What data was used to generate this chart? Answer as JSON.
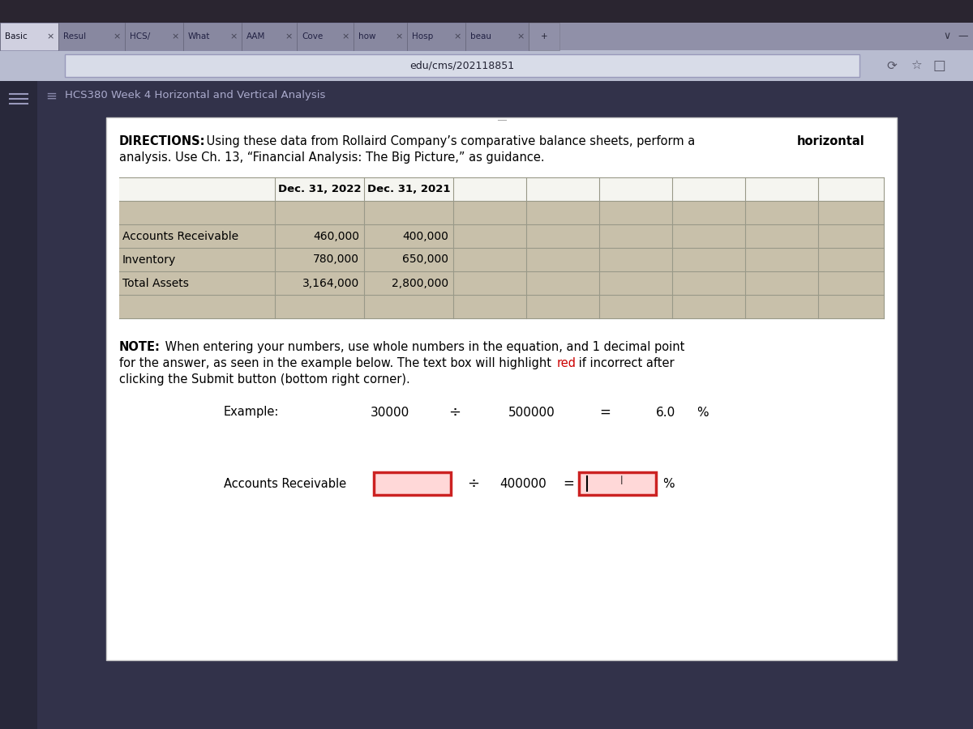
{
  "bg_outer": "#1a1a2a",
  "bg_top_bezel": "#2a2530",
  "tab_bar_bg": "#9090a8",
  "tab_active_bg": "#d0d0e0",
  "tab_inactive_bg": "#8888a0",
  "url_bar_bg": "#b8bcd0",
  "url_text_bg": "#d8dce8",
  "sidebar_bg": "#28283a",
  "content_bg": "#32324a",
  "white_box_bg": "#ffffff",
  "white_box_border": "#cccccc",
  "table_header_bg": "#f5f5f0",
  "table_data_bg": "#c8c0aa",
  "table_extra_bg": "#d0c8b8",
  "table_border": "#aaaaaa",
  "title_color": "#aaaacc",
  "tabs": [
    "Basic",
    "Resul",
    "HCS/",
    "What",
    "AAM",
    "Cove",
    "how",
    "Hosp",
    "beau",
    "+"
  ],
  "tab_widths": [
    72,
    82,
    72,
    72,
    68,
    70,
    66,
    72,
    78,
    38
  ],
  "url": "edu/cms/202118851",
  "page_title": "HCS380 Week 4 Horizontal and Vertical Analysis",
  "col_header_2022": "Dec. 31, 2022",
  "col_header_2021": "Dec. 31, 2021",
  "rows": [
    {
      "label": "Accounts Receivable",
      "val2022": "460,000",
      "val2021": "400,000"
    },
    {
      "label": "Inventory",
      "val2022": "780,000",
      "val2021": "650,000"
    },
    {
      "label": "Total Assets",
      "val2022": "3,164,000",
      "val2021": "2,800,000"
    }
  ],
  "input_face": "#ffd8d8",
  "input_edge": "#cc2222",
  "note_red": "#cc0000",
  "content_black": "#000000",
  "font_size_main": 10.5,
  "font_size_table": 10.0,
  "font_size_tab": 7.5,
  "font_size_url": 9.0
}
